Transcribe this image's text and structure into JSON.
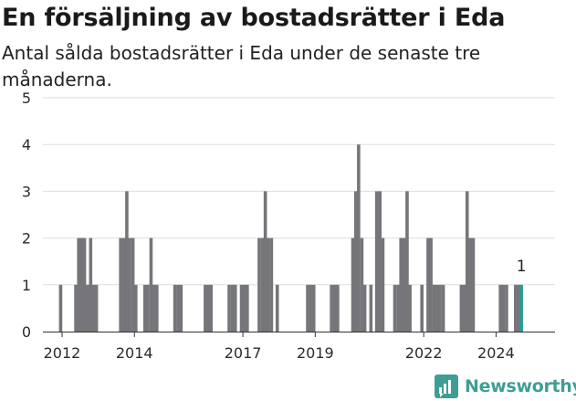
{
  "title": "En försäljning av bostadsrätter i Eda",
  "subtitle": "Antal sålda bostadsrätter i Eda under de senaste tre månaderna.",
  "brand": {
    "name": "Newsworthy"
  },
  "colors": {
    "bar": "#76757a",
    "highlight": "#2a9d95",
    "grid": "#dedede",
    "text": "#2b2b2b",
    "brand": "#3f9e93"
  },
  "chart_data": {
    "type": "bar",
    "title": "En försäljning av bostadsrätter i Eda",
    "subtitle": "Antal sålda bostadsrätter i Eda under de senaste tre månaderna.",
    "xlabel": "",
    "ylabel": "",
    "ylim": [
      0,
      5
    ],
    "yticks": [
      "0",
      "1",
      "2",
      "3",
      "4",
      "5"
    ],
    "xticks": [
      {
        "label": "2012",
        "value": 2012.0
      },
      {
        "label": "2014",
        "value": 2014.0
      },
      {
        "label": "2017",
        "value": 2017.0
      },
      {
        "label": "2019",
        "value": 2019.0
      },
      {
        "label": "2022",
        "value": 2022.0
      },
      {
        "label": "2024",
        "value": 2024.0
      }
    ],
    "grid": true,
    "bars": [
      {
        "t": 2011.96,
        "v": 1
      },
      {
        "t": 2012.38,
        "v": 1
      },
      {
        "t": 2012.46,
        "v": 2
      },
      {
        "t": 2012.54,
        "v": 2
      },
      {
        "t": 2012.62,
        "v": 2
      },
      {
        "t": 2012.7,
        "v": 1
      },
      {
        "t": 2012.79,
        "v": 2
      },
      {
        "t": 2012.87,
        "v": 1
      },
      {
        "t": 2012.95,
        "v": 1
      },
      {
        "t": 2013.62,
        "v": 2
      },
      {
        "t": 2013.71,
        "v": 2
      },
      {
        "t": 2013.79,
        "v": 3
      },
      {
        "t": 2013.87,
        "v": 2
      },
      {
        "t": 2013.96,
        "v": 2
      },
      {
        "t": 2014.04,
        "v": 1
      },
      {
        "t": 2014.29,
        "v": 1
      },
      {
        "t": 2014.37,
        "v": 1
      },
      {
        "t": 2014.46,
        "v": 2
      },
      {
        "t": 2014.54,
        "v": 1
      },
      {
        "t": 2014.62,
        "v": 1
      },
      {
        "t": 2015.12,
        "v": 1
      },
      {
        "t": 2015.21,
        "v": 1
      },
      {
        "t": 2015.29,
        "v": 1
      },
      {
        "t": 2015.96,
        "v": 1
      },
      {
        "t": 2016.04,
        "v": 1
      },
      {
        "t": 2016.12,
        "v": 1
      },
      {
        "t": 2016.62,
        "v": 1
      },
      {
        "t": 2016.71,
        "v": 1
      },
      {
        "t": 2016.79,
        "v": 1
      },
      {
        "t": 2016.96,
        "v": 1
      },
      {
        "t": 2017.04,
        "v": 1
      },
      {
        "t": 2017.12,
        "v": 1
      },
      {
        "t": 2017.45,
        "v": 2
      },
      {
        "t": 2017.54,
        "v": 2
      },
      {
        "t": 2017.62,
        "v": 3
      },
      {
        "t": 2017.7,
        "v": 2
      },
      {
        "t": 2017.79,
        "v": 2
      },
      {
        "t": 2017.95,
        "v": 1
      },
      {
        "t": 2018.79,
        "v": 1
      },
      {
        "t": 2018.87,
        "v": 1
      },
      {
        "t": 2018.96,
        "v": 1
      },
      {
        "t": 2019.45,
        "v": 1
      },
      {
        "t": 2019.54,
        "v": 1
      },
      {
        "t": 2019.62,
        "v": 1
      },
      {
        "t": 2020.04,
        "v": 2
      },
      {
        "t": 2020.12,
        "v": 3
      },
      {
        "t": 2020.2,
        "v": 4
      },
      {
        "t": 2020.29,
        "v": 2
      },
      {
        "t": 2020.37,
        "v": 1
      },
      {
        "t": 2020.54,
        "v": 1
      },
      {
        "t": 2020.7,
        "v": 3
      },
      {
        "t": 2020.79,
        "v": 3
      },
      {
        "t": 2020.87,
        "v": 2
      },
      {
        "t": 2021.2,
        "v": 1
      },
      {
        "t": 2021.29,
        "v": 1
      },
      {
        "t": 2021.37,
        "v": 2
      },
      {
        "t": 2021.46,
        "v": 2
      },
      {
        "t": 2021.54,
        "v": 3
      },
      {
        "t": 2021.62,
        "v": 1
      },
      {
        "t": 2021.95,
        "v": 1
      },
      {
        "t": 2022.12,
        "v": 2
      },
      {
        "t": 2022.2,
        "v": 2
      },
      {
        "t": 2022.29,
        "v": 1
      },
      {
        "t": 2022.37,
        "v": 1
      },
      {
        "t": 2022.45,
        "v": 1
      },
      {
        "t": 2022.54,
        "v": 1
      },
      {
        "t": 2023.04,
        "v": 1
      },
      {
        "t": 2023.12,
        "v": 1
      },
      {
        "t": 2023.2,
        "v": 3
      },
      {
        "t": 2023.29,
        "v": 2
      },
      {
        "t": 2023.37,
        "v": 2
      },
      {
        "t": 2024.12,
        "v": 1
      },
      {
        "t": 2024.2,
        "v": 1
      },
      {
        "t": 2024.29,
        "v": 1
      },
      {
        "t": 2024.54,
        "v": 1
      },
      {
        "t": 2024.62,
        "v": 1
      },
      {
        "t": 2024.7,
        "v": 1
      }
    ],
    "highlight": {
      "t": 2024.7,
      "value": 1,
      "label": "1"
    }
  }
}
